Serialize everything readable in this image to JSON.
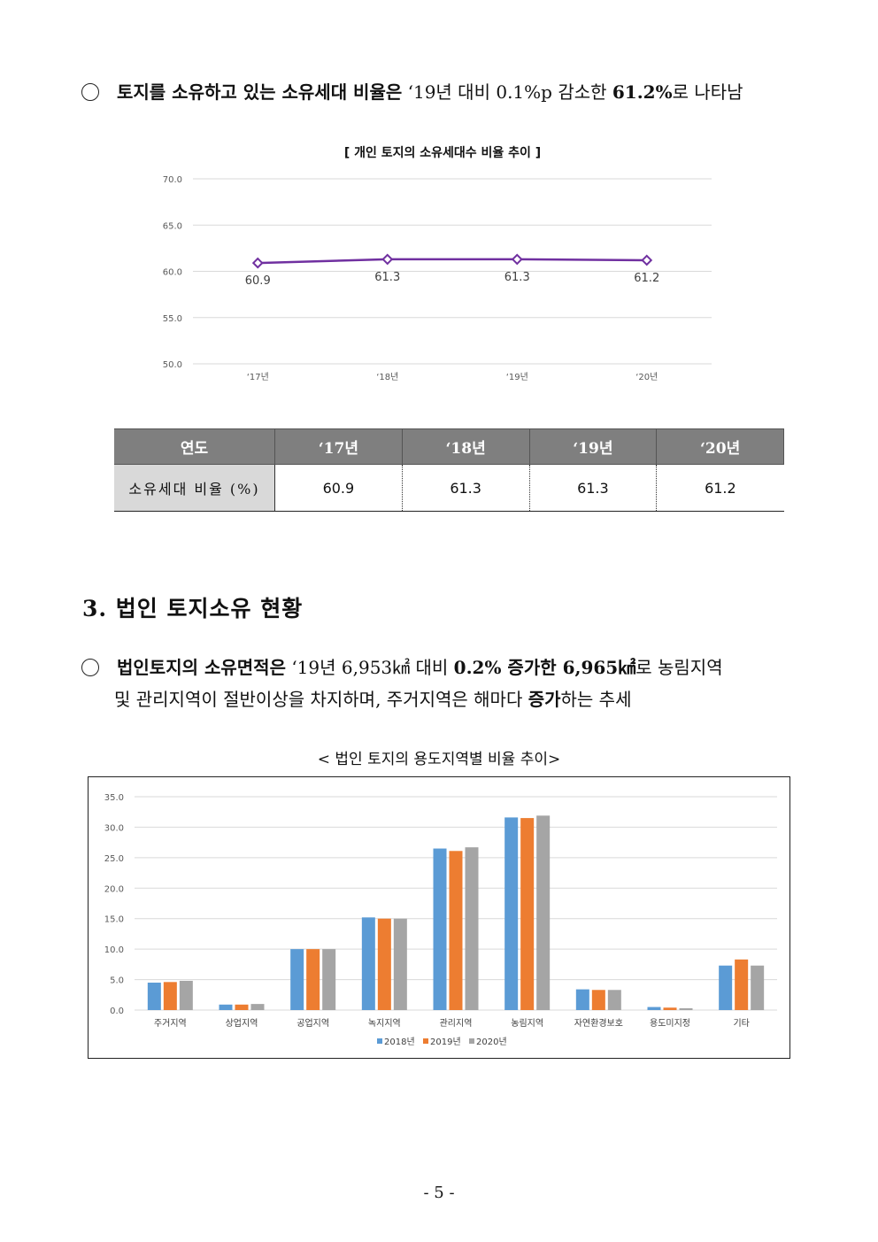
{
  "bullet1": {
    "text_bold": "토지를 소유하고 있는 소유세대 비율은",
    "text_mid": " ‘19년 대비 0.1%p 감소한 ",
    "text_bold2": "61.2%",
    "text_end": "로 나타남"
  },
  "chart1": {
    "title": "[ 개인 토지의 소유세대수 비율 추이 ]"
  },
  "chart_data": [
    {
      "type": "line",
      "title": "[ 개인 토지의 소유세대수 비율 추이 ]",
      "categories": [
        "‘17년",
        "‘18년",
        "‘19년",
        "‘20년"
      ],
      "series": [
        {
          "values": [
            60.9,
            61.3,
            61.3,
            61.2
          ]
        }
      ],
      "ylim": [
        50.0,
        70.0
      ],
      "yticks": [
        "70.0",
        "65.0",
        "60.0",
        "55.0",
        "50.0"
      ],
      "grid": true,
      "color": "#7030a0"
    },
    {
      "type": "bar",
      "title": "< 법인 토지의 용도지역별 비율 추이>",
      "categories": [
        "주거지역",
        "상업지역",
        "공업지역",
        "녹지지역",
        "관리지역",
        "농림지역",
        "자연환경보호",
        "용도미지정",
        "기타"
      ],
      "series": [
        {
          "name": "2018년",
          "color": "#5b9bd5",
          "values": [
            4.5,
            0.9,
            10.0,
            15.2,
            26.5,
            31.6,
            3.4,
            0.5,
            7.3
          ]
        },
        {
          "name": "2019년",
          "color": "#ed7d31",
          "values": [
            4.6,
            0.9,
            10.0,
            15.0,
            26.1,
            31.5,
            3.3,
            0.4,
            8.3
          ]
        },
        {
          "name": "2020년",
          "color": "#a5a5a5",
          "values": [
            4.8,
            1.0,
            10.0,
            15.0,
            26.7,
            31.9,
            3.3,
            0.3,
            7.3
          ]
        }
      ],
      "ylim": [
        0.0,
        35.0
      ],
      "yticks": [
        "0.0",
        "5.0",
        "10.0",
        "15.0",
        "20.0",
        "25.0",
        "30.0",
        "35.0"
      ],
      "grid": true,
      "legend": "bottom"
    }
  ],
  "table": {
    "header": [
      "연도",
      "‘17년",
      "‘18년",
      "‘19년",
      "‘20년"
    ],
    "row_label": "소유세대 비율 (%)",
    "values": [
      "60.9",
      "61.3",
      "61.3",
      "61.2"
    ]
  },
  "section": {
    "heading": "3. 법인 토지소유 현황"
  },
  "bullet2": {
    "l1_bold": "법인토지의 소유면적은",
    "l1_mid": " ‘19년 6,953㎢ 대비 ",
    "l1_bold2": "0.2% 증가한 6,965㎢",
    "l1_end": "로 농림지역",
    "l2_start": "및 관리지역이 절반이상을 차지하며, 주거지역은 해마다 ",
    "l2_bold": "증가",
    "l2_end": "하는 추세"
  },
  "chart2": {
    "title": "< 법인 토지의 용도지역별 비율 추이>"
  },
  "page": {
    "number": "- 5 -"
  }
}
